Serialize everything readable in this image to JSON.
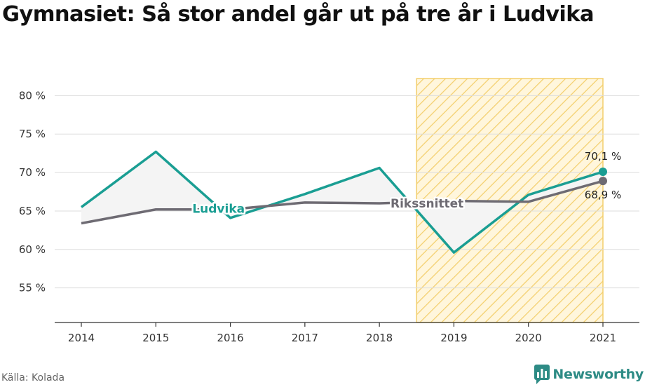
{
  "title": "Gymnasiet: Så stor andel går ut på tre år i Ludvika",
  "source": "Källa: Kolada",
  "brand": {
    "name": "Newsworthy",
    "logo_icon": "newsworthy-logo-icon"
  },
  "colors": {
    "ludvika": "#1a9e93",
    "riks": "#6e6b73",
    "band": "#f5c542",
    "area": "#f4f4f4"
  },
  "chart_data": {
    "type": "line",
    "x": [
      2014,
      2015,
      2016,
      2017,
      2018,
      2019,
      2020,
      2021
    ],
    "ylim": [
      50.5,
      83.5
    ],
    "yticks": [
      55,
      60,
      65,
      70,
      75,
      80
    ],
    "ytick_labels": [
      "55 %",
      "60 %",
      "65 %",
      "70 %",
      "75 %",
      "80 %"
    ],
    "xtick_labels": [
      "2014",
      "2015",
      "2016",
      "2017",
      "2018",
      "2019",
      "2020",
      "2021"
    ],
    "grid": true,
    "highlight_band": {
      "from": 2018.5,
      "to": 2021
    },
    "series": [
      {
        "name": "Ludvika",
        "values": [
          65.5,
          72.7,
          64.1,
          67.2,
          70.6,
          59.6,
          67.1,
          70.1
        ],
        "end_label": "70,1 %"
      },
      {
        "name": "Rikssnittet",
        "values": [
          63.4,
          65.2,
          65.2,
          66.1,
          66.0,
          66.3,
          66.2,
          68.9
        ],
        "end_label": "68,9 %"
      }
    ]
  }
}
